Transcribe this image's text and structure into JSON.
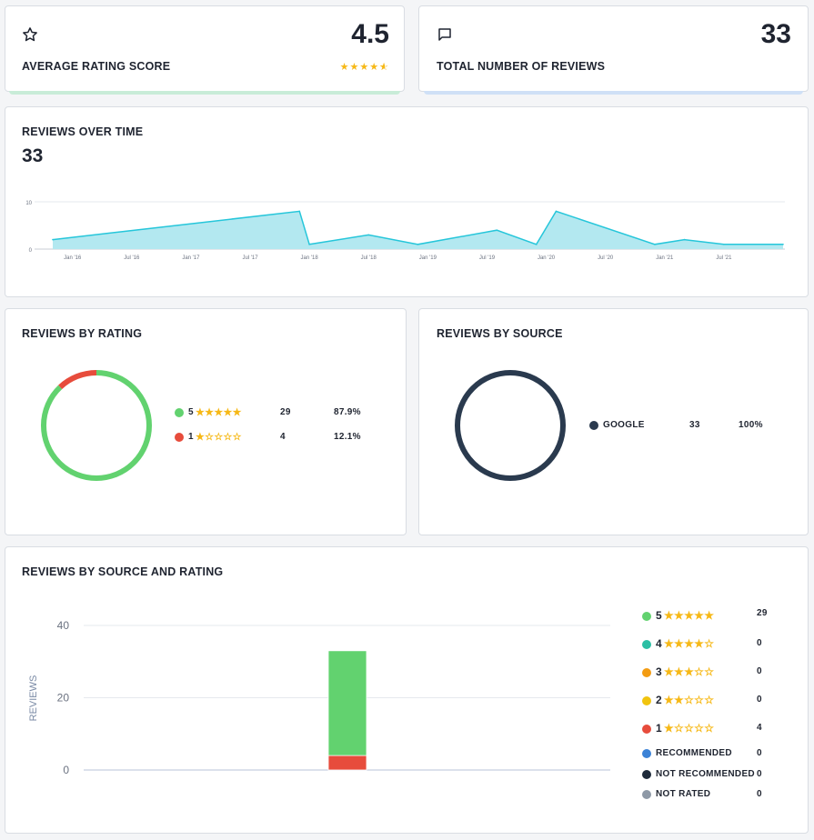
{
  "avg_card": {
    "title": "AVERAGE RATING SCORE",
    "value": "4.5",
    "icon": "star-outline-icon",
    "stars_filled": 4.5,
    "accent": "#c8ecd8"
  },
  "total_card": {
    "title": "TOTAL NUMBER OF REVIEWS",
    "value": "33",
    "icon": "speech-bubble-icon",
    "accent": "#cfe0f6"
  },
  "over_time": {
    "title": "REVIEWS OVER TIME",
    "total": "33"
  },
  "by_rating": {
    "title": "REVIEWS BY RATING",
    "rows": [
      {
        "rating": "5",
        "stars": 5,
        "color": "#62d26f",
        "count": "29",
        "percent": "87.9%"
      },
      {
        "rating": "1",
        "stars": 1,
        "color": "#e74c3c",
        "count": "4",
        "percent": "12.1%"
      }
    ]
  },
  "by_source": {
    "title": "REVIEWS BY SOURCE",
    "rows": [
      {
        "source": "GOOGLE",
        "color": "#2a3a4e",
        "count": "33",
        "percent": "100%"
      }
    ]
  },
  "source_rating": {
    "title": "REVIEWS BY SOURCE AND RATING",
    "legend": [
      {
        "rating": "5",
        "stars": 5,
        "color": "#62d26f",
        "count": "29"
      },
      {
        "rating": "4",
        "stars": 4,
        "color": "#2bbfa4",
        "count": "0"
      },
      {
        "rating": "3",
        "stars": 3,
        "color": "#f39c12",
        "count": "0"
      },
      {
        "rating": "2",
        "stars": 2,
        "color": "#f1c40f",
        "count": "0"
      },
      {
        "rating": "1",
        "stars": 1,
        "color": "#e74c3c",
        "count": "4"
      },
      {
        "label": "RECOMMENDED",
        "color": "#3b82d6",
        "count": "0"
      },
      {
        "label": "NOT RECOMMENDED",
        "color": "#1e2a3a",
        "count": "0"
      },
      {
        "label": "NOT RATED",
        "color": "#8e99a6",
        "count": "0"
      }
    ]
  },
  "chart_data": [
    {
      "type": "area",
      "x_tick_labels": [
        "Jan '16",
        "Jul '16",
        "Jan '17",
        "Jul '17",
        "Jan '18",
        "Jul '18",
        "Jan '19",
        "Jul '19",
        "Jan '20",
        "Jul '20",
        "Jan '21",
        "Jul '21"
      ],
      "y_ticks": [
        0,
        10
      ],
      "ylim": [
        0,
        10
      ],
      "color": "#26c6da",
      "fill": "#b3e8f0",
      "points": [
        {
          "x": "2015-11",
          "y": 2
        },
        {
          "x": "2017-12",
          "y": 8
        },
        {
          "x": "2018-01",
          "y": 1
        },
        {
          "x": "2018-07",
          "y": 3
        },
        {
          "x": "2018-12",
          "y": 1
        },
        {
          "x": "2019-08",
          "y": 4
        },
        {
          "x": "2019-12",
          "y": 1
        },
        {
          "x": "2020-02",
          "y": 8
        },
        {
          "x": "2020-12",
          "y": 1
        },
        {
          "x": "2021-03",
          "y": 2
        },
        {
          "x": "2021-07",
          "y": 1
        },
        {
          "x": "2022-01",
          "y": 1
        }
      ]
    },
    {
      "type": "pie",
      "variant": "donut",
      "slices": [
        {
          "label": "5",
          "value": 29,
          "color": "#62d26f"
        },
        {
          "label": "1",
          "value": 4,
          "color": "#e74c3c"
        }
      ]
    },
    {
      "type": "pie",
      "variant": "donut",
      "slices": [
        {
          "label": "GOOGLE",
          "value": 33,
          "color": "#2a3a4e"
        }
      ]
    },
    {
      "type": "bar",
      "stacked": true,
      "ylabel": "REVIEWS",
      "ylim": [
        0,
        40
      ],
      "y_ticks": [
        0,
        20,
        40
      ],
      "categories": [
        ""
      ],
      "series": [
        {
          "name": "1",
          "values": [
            4
          ],
          "color": "#e74c3c"
        },
        {
          "name": "5",
          "values": [
            29
          ],
          "color": "#62d26f"
        }
      ]
    }
  ]
}
